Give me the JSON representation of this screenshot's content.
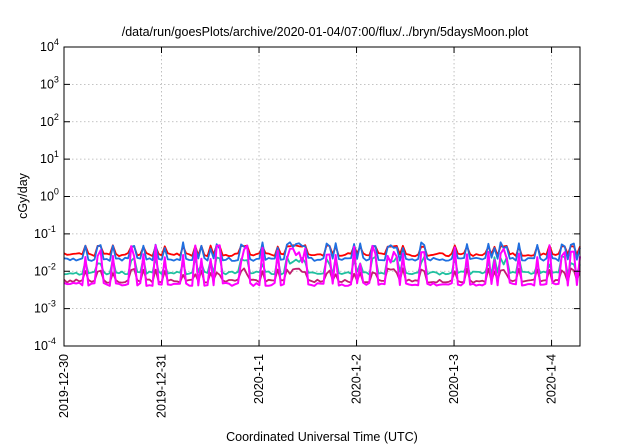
{
  "chart_data": {
    "type": "line",
    "title": "/data/run/goesPlots/archive/2020-01-04/07:00/flux/../bryn/5daysMoon.plot",
    "xlabel": "Coordinated Universal Time (UTC)",
    "ylabel": "cGy/day",
    "y_scale": "log",
    "ylim": [
      0.0001,
      10000
    ],
    "xlim": [
      "2019-12-30",
      "2020-01-04 07:00"
    ],
    "grid": true,
    "x_ticks": [
      {
        "label": "2019-12-30",
        "value": "2019-12-30"
      },
      {
        "label": "2019-12-31",
        "value": "2019-12-31"
      },
      {
        "label": "2020-1-1",
        "value": "2020-01-01"
      },
      {
        "label": "2020-1-2",
        "value": "2020-01-02"
      },
      {
        "label": "2020-1-3",
        "value": "2020-01-03"
      },
      {
        "label": "2020-1-4",
        "value": "2020-01-04"
      }
    ],
    "y_ticks": [
      {
        "base": "10",
        "exp": "4",
        "value": 10000
      },
      {
        "base": "10",
        "exp": "3",
        "value": 1000
      },
      {
        "base": "10",
        "exp": "2",
        "value": 100
      },
      {
        "base": "10",
        "exp": "1",
        "value": 10
      },
      {
        "base": "10",
        "exp": "0",
        "value": 1
      },
      {
        "base": "10",
        "exp": "-1",
        "value": 0.1
      },
      {
        "base": "10",
        "exp": "-2",
        "value": 0.01
      },
      {
        "base": "10",
        "exp": "-3",
        "value": 0.001
      },
      {
        "base": "10",
        "exp": "-4",
        "value": 0.0001
      }
    ],
    "series": [
      {
        "color": "#ff0000",
        "baseline": 0.028,
        "spike": 0.05,
        "spike_min": 0.045
      },
      {
        "color": "#1f6fe0",
        "baseline": 0.021,
        "spike": 0.06,
        "spike_min": 0.04
      },
      {
        "color": "#20c0a0",
        "baseline": 0.009,
        "spike": 0.025,
        "spike_min": 0.015
      },
      {
        "color": "#c02070",
        "baseline": 0.0055,
        "spike": 0.012,
        "spike_min": 0.008
      },
      {
        "color": "#ff00ff",
        "baseline": 0.0045,
        "spike": 0.05,
        "spike_min": 0.015
      }
    ]
  }
}
